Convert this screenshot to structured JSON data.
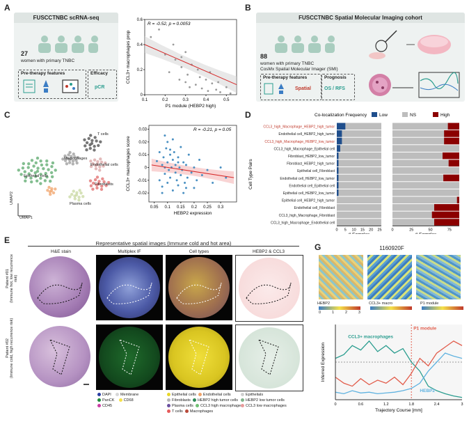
{
  "panelA": {
    "letter": "A",
    "title": "FUSCCTNBC scRNA-seq",
    "count": "27",
    "desc": "women with primary TNBC",
    "pretherapy": "Pre-therapy features",
    "efficacy": "Efficacy",
    "pcr": "pCR"
  },
  "panelB": {
    "letter": "B",
    "title": "FUSCCTNBC Spatial Molecular Imaging cohort",
    "count": "88",
    "desc1": "women with primary TNBC",
    "desc2": "CosMx Spatial Molecular Imager (SMI)",
    "pretherapy": "Pre-therapy features",
    "prognosis": "Prognosis",
    "spatial": "Spatial",
    "osrfs": "OS / RFS"
  },
  "panelC": {
    "letter": "C",
    "umap_labels": [
      "T cells",
      "Macrophages",
      "Endothelial cells",
      "Epithelial cells",
      "Fibroblasts",
      "Plasma cells"
    ],
    "umap_axis": [
      "UMAP1",
      "UMAP2"
    ]
  },
  "panelD": {
    "letter": "D"
  },
  "panelE": {
    "letter": "E",
    "header": "Representative spatial images (Immune cold and hot area)",
    "cols": [
      "H&E stain",
      "Multiplex IF",
      "Cell types",
      "HEBP2 & CCL3"
    ],
    "rows": [
      "Patient #01",
      "(Immune hot, low recurrence risk)",
      "Patient #02",
      "(Immune cold, high recurrence risk)"
    ],
    "legend_if": [
      "DAPI",
      "Membrane",
      "PanCK",
      "CD68",
      "CD45"
    ],
    "legend_ct": [
      "Epithelial cells",
      "Endothelial cells",
      "Fibroblasts",
      "HEBP2 high tumor cells",
      "Plasma cells",
      "CCL3 high macrophages",
      "T cells",
      "Macrophages"
    ],
    "legend_ct_colors": [
      "#e8d628",
      "#f0a36a",
      "#b6b6b6",
      "#2e8b57",
      "#6a4fa0",
      "#6fbf73",
      "#e65b5b",
      "#b84a3a"
    ],
    "legend_hc": [
      "Epithelials",
      "HEBP2 low tumor cells",
      "CCL3 low macrophages"
    ]
  },
  "panelG": {
    "letter": "G",
    "sample": "1160920F",
    "cb_labels": [
      "HEBP2",
      "CCL3+ macro",
      "P1 module"
    ],
    "cb_ticks": [
      "0",
      "1",
      "2",
      "3"
    ],
    "ylabel": "Inferred Expression",
    "xlabel": "Trajectory Course [mm]",
    "ccl3": "CCL3+ macrophages",
    "p1": "P1 module",
    "hebp2": "HEBP2",
    "xticks": [
      "0",
      "0.6",
      "1.2",
      "1.8",
      "2.4",
      "3"
    ]
  },
  "chart_data": [
    {
      "id": "A_scatter",
      "type": "scatter",
      "title": "",
      "annotation": "R = -0.52, p = 0.0053",
      "xlabel": "P1 module (HEBP2 high)",
      "ylabel": "CCL3+ macrophages prop",
      "xlim": [
        0.1,
        0.55
      ],
      "ylim": [
        0,
        0.6
      ],
      "xticks": [
        0.1,
        0.2,
        0.3,
        0.4,
        0.5
      ],
      "yticks": [
        0,
        0.2,
        0.4,
        0.6
      ],
      "points": [
        [
          0.13,
          0.46
        ],
        [
          0.17,
          0.52
        ],
        [
          0.2,
          0.32
        ],
        [
          0.22,
          0.18
        ],
        [
          0.25,
          0.28
        ],
        [
          0.27,
          0.12
        ],
        [
          0.28,
          0.22
        ],
        [
          0.3,
          0.34
        ],
        [
          0.3,
          0.1
        ],
        [
          0.32,
          0.06
        ],
        [
          0.33,
          0.24
        ],
        [
          0.35,
          0.08
        ],
        [
          0.36,
          0.2
        ],
        [
          0.38,
          0.05
        ],
        [
          0.4,
          0.12
        ],
        [
          0.41,
          0.03
        ],
        [
          0.43,
          0.09
        ],
        [
          0.45,
          0.04
        ],
        [
          0.47,
          0.02
        ],
        [
          0.5,
          0.06
        ],
        [
          0.52,
          0.01
        ],
        [
          0.31,
          0.16
        ],
        [
          0.24,
          0.4
        ],
        [
          0.42,
          0.18
        ],
        [
          0.28,
          0.3
        ],
        [
          0.37,
          0.14
        ],
        [
          0.46,
          0.1
        ]
      ],
      "fit": [
        [
          0.1,
          0.4
        ],
        [
          0.55,
          0.08
        ]
      ]
    },
    {
      "id": "C_scatter",
      "type": "scatter",
      "annotation": "R = -0.21, p = 0.05",
      "xlabel": "HEBP2 expression",
      "ylabel": "CCL3+ macrophages score",
      "xlim": [
        0.03,
        0.36
      ],
      "ylim": [
        -0.027,
        0.033
      ],
      "xticks": [
        0.05,
        0.1,
        0.15,
        0.2,
        0.25,
        0.3
      ],
      "yticks": [
        -0.02,
        -0.01,
        0,
        0.01,
        0.02,
        0.03
      ],
      "points": [
        [
          0.06,
          0.005
        ],
        [
          0.07,
          -0.01
        ],
        [
          0.07,
          0.012
        ],
        [
          0.08,
          0.002
        ],
        [
          0.08,
          -0.015
        ],
        [
          0.085,
          0.008
        ],
        [
          0.09,
          0.0
        ],
        [
          0.09,
          -0.005
        ],
        [
          0.095,
          0.015
        ],
        [
          0.1,
          -0.012
        ],
        [
          0.1,
          0.004
        ],
        [
          0.1,
          0.02
        ],
        [
          0.105,
          -0.002
        ],
        [
          0.11,
          0.01
        ],
        [
          0.11,
          -0.008
        ],
        [
          0.115,
          0.0
        ],
        [
          0.12,
          -0.018
        ],
        [
          0.12,
          0.006
        ],
        [
          0.125,
          0.012
        ],
        [
          0.13,
          -0.004
        ],
        [
          0.13,
          0.002
        ],
        [
          0.135,
          -0.01
        ],
        [
          0.14,
          0.008
        ],
        [
          0.14,
          -0.014
        ],
        [
          0.145,
          0.0
        ],
        [
          0.15,
          -0.006
        ],
        [
          0.15,
          0.016
        ],
        [
          0.155,
          -0.002
        ],
        [
          0.16,
          0.004
        ],
        [
          0.165,
          -0.012
        ],
        [
          0.17,
          0.002
        ],
        [
          0.175,
          -0.008
        ],
        [
          0.18,
          0.01
        ],
        [
          0.19,
          -0.004
        ],
        [
          0.2,
          0.0
        ],
        [
          0.21,
          -0.01
        ],
        [
          0.22,
          0.006
        ],
        [
          0.23,
          -0.006
        ],
        [
          0.25,
          -0.002
        ],
        [
          0.27,
          -0.012
        ],
        [
          0.3,
          0.0
        ],
        [
          0.32,
          -0.008
        ],
        [
          0.09,
          0.025
        ],
        [
          0.12,
          0.022
        ],
        [
          0.16,
          -0.02
        ],
        [
          0.2,
          -0.016
        ],
        [
          0.08,
          -0.02
        ],
        [
          0.11,
          0.014
        ],
        [
          0.14,
          0.004
        ],
        [
          0.17,
          -0.016
        ]
      ],
      "fit": [
        [
          0.04,
          0.002
        ],
        [
          0.35,
          -0.008
        ]
      ]
    },
    {
      "id": "D_bar",
      "type": "bar",
      "title": "Co-localization Frequency",
      "legend": [
        "Low",
        "NS",
        "High"
      ],
      "legend_colors": [
        "#1f4e8c",
        "#bdbdbd",
        "#8b0000"
      ],
      "ylabel": "Cell Type Pairs",
      "xlabel": "# Samples",
      "categories": [
        "CCL3_high_Macrophage_HEBP2_high_tumor",
        "Endothelial cell_HEBP2_high_tumor",
        "CCL3_high_Macrophage_HEBP2_low_tumor",
        "CCL3_high_Macrophage_Epithelial cell",
        "Fibroblast_HEBP2_low_tumor",
        "Fibroblast_HEBP2_high_tumor",
        "Epithelial cell_Fibroblast",
        "Endothelial cell_HEBP2_low_tumor",
        "Endothelial cell_Epithelial cell",
        "Epithelial cell_HEBP2_low_tumor",
        "Epithelial cell_HEBP2_high_tumor",
        "Endothelial cell_Fibroblast",
        "CCL3_high_Macrophage_Fibroblast",
        "CCL3_high_Macrophage_Endothelial cell"
      ],
      "highlight": [
        0,
        2
      ],
      "left_panel": {
        "xlim": [
          0,
          26
        ],
        "xticks": [
          0,
          5,
          10,
          15,
          20,
          25
        ],
        "low": [
          5,
          3,
          3,
          2,
          1,
          1,
          1,
          1,
          1,
          1,
          0,
          0,
          0,
          0
        ]
      },
      "right_panel": {
        "xlim": [
          0,
          88
        ],
        "xticks": [
          0,
          25,
          50,
          75
        ],
        "high": [
          15,
          20,
          20,
          0,
          22,
          14,
          0,
          21,
          0,
          0,
          3,
          33,
          36,
          33
        ]
      }
    },
    {
      "id": "G_line",
      "type": "line",
      "xlabel": "Trajectory Course [mm]",
      "ylabel": "Inferred Expression",
      "xlim": [
        0,
        3
      ],
      "ylim": [
        0,
        1
      ],
      "series": [
        {
          "name": "CCL3+ macrophages",
          "color": "#2a9d8f",
          "x": [
            0,
            0.2,
            0.4,
            0.6,
            0.8,
            1.0,
            1.2,
            1.4,
            1.6,
            1.8,
            2.0,
            2.2,
            2.4,
            2.6,
            2.8,
            3.0
          ],
          "y": [
            0.55,
            0.6,
            0.72,
            0.66,
            0.78,
            0.64,
            0.72,
            0.62,
            0.68,
            0.5,
            0.38,
            0.18,
            0.12,
            0.08,
            0.05,
            0.03
          ]
        },
        {
          "name": "P1 module",
          "color": "#e25c4b",
          "x": [
            0,
            0.2,
            0.4,
            0.6,
            0.8,
            1.0,
            1.2,
            1.4,
            1.6,
            1.8,
            2.0,
            2.2,
            2.4,
            2.6,
            2.8,
            3.0
          ],
          "y": [
            0.3,
            0.22,
            0.18,
            0.28,
            0.2,
            0.26,
            0.22,
            0.3,
            0.2,
            0.35,
            0.55,
            0.45,
            0.62,
            0.7,
            0.78,
            0.72
          ]
        },
        {
          "name": "HEBP2",
          "color": "#5fb2e0",
          "x": [
            0,
            0.2,
            0.4,
            0.6,
            0.8,
            1.0,
            1.2,
            1.4,
            1.6,
            1.8,
            2.0,
            2.2,
            2.4,
            2.6,
            2.8,
            3.0
          ],
          "y": [
            0.1,
            0.08,
            0.12,
            0.09,
            0.1,
            0.08,
            0.09,
            0.1,
            0.12,
            0.15,
            0.22,
            0.38,
            0.5,
            0.62,
            0.58,
            0.55
          ]
        }
      ]
    }
  ]
}
